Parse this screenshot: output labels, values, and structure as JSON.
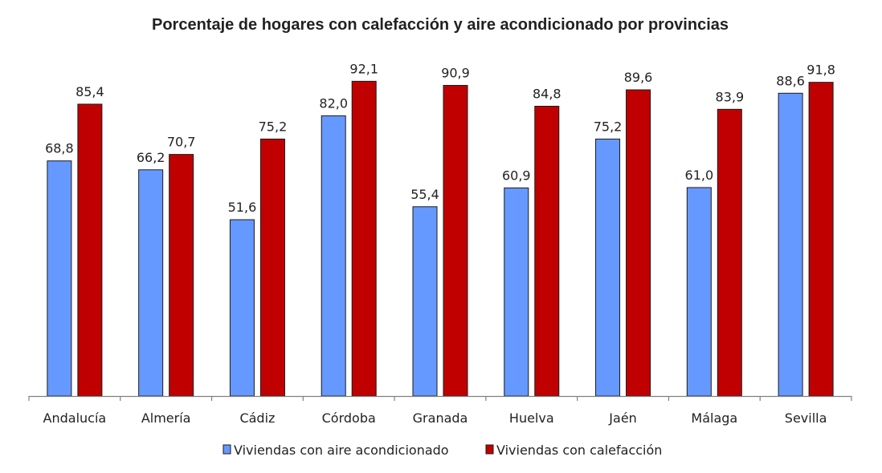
{
  "chart_data": {
    "type": "bar",
    "title": "Porcentaje de hogares con calefacción y aire acondicionado por provincias",
    "xlabel": "",
    "ylabel": "",
    "categories": [
      "Andalucía",
      "Almería",
      "Cádiz",
      "Córdoba",
      "Granada",
      "Huelva",
      "Jaén",
      "Málaga",
      "Sevilla"
    ],
    "series": [
      {
        "name": "Viviendas con aire acondicionado",
        "color": "#6699FF",
        "values": [
          68.8,
          66.2,
          51.6,
          82.0,
          55.4,
          60.9,
          75.2,
          61.0,
          88.6
        ],
        "labels": [
          "68,8",
          "66,2",
          "51,6",
          "82,0",
          "55,4",
          "60,9",
          "75,2",
          "61,0",
          "88,6"
        ]
      },
      {
        "name": "Viviendas con calefacción",
        "color": "#C00000",
        "values": [
          85.4,
          70.7,
          75.2,
          92.1,
          90.9,
          84.8,
          89.6,
          83.9,
          91.8
        ],
        "labels": [
          "85,4",
          "70,7",
          "75,2",
          "92,1",
          "90,9",
          "84,8",
          "89,6",
          "83,9",
          "91,8"
        ]
      }
    ],
    "ylim": [
      0,
      100
    ],
    "y_axis_visible": false,
    "grid": false,
    "legend_position": "bottom"
  }
}
